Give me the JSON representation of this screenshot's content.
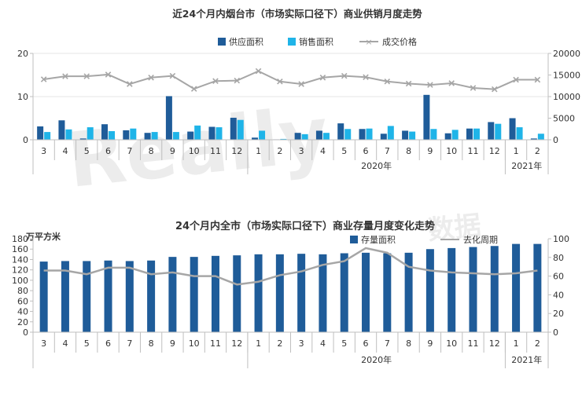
{
  "watermark": "Really",
  "watermark_cn": "数据",
  "chart_data": [
    {
      "type": "bar",
      "title": "近24个月内烟台市（市场实际口径下）商业供销月度走势",
      "categories": [
        "3",
        "4",
        "5",
        "6",
        "7",
        "8",
        "9",
        "10",
        "11",
        "12",
        "1",
        "2",
        "3",
        "4",
        "5",
        "6",
        "7",
        "8",
        "9",
        "10",
        "11",
        "12",
        "1",
        "2"
      ],
      "year_labels": [
        "2020年",
        "2021年"
      ],
      "series": [
        {
          "name": "供应面积",
          "type": "bar",
          "axis": "left",
          "color": "#1f5c99",
          "values": [
            3.1,
            4.5,
            0.3,
            3.6,
            2.2,
            1.6,
            10.1,
            1.9,
            3.0,
            5.1,
            0.5,
            0.1,
            1.6,
            2.1,
            3.8,
            2.5,
            1.4,
            2.1,
            10.4,
            1.5,
            2.6,
            4.1,
            5.0,
            0.3
          ]
        },
        {
          "name": "销售面积",
          "type": "bar",
          "axis": "left",
          "color": "#1fb4e8",
          "values": [
            1.8,
            2.4,
            2.9,
            2.0,
            2.6,
            1.8,
            1.8,
            3.3,
            2.9,
            4.6,
            2.1,
            0.2,
            1.3,
            1.6,
            2.5,
            2.6,
            3.2,
            1.9,
            2.5,
            2.3,
            2.6,
            3.7,
            2.9,
            1.4
          ]
        },
        {
          "name": "成交价格",
          "type": "line",
          "axis": "right",
          "color": "#a6a6a6",
          "values": [
            14000,
            14700,
            14700,
            15100,
            12900,
            14400,
            14800,
            11800,
            13600,
            13700,
            15900,
            13500,
            12900,
            14400,
            14800,
            14500,
            13500,
            13000,
            12700,
            13100,
            12000,
            11700,
            13900,
            13900
          ]
        }
      ],
      "ylim_left": [
        0,
        20
      ],
      "yticks_left": [
        0,
        10,
        20
      ],
      "ylim_right": [
        0,
        20000
      ],
      "yticks_right": [
        0,
        5000,
        10000,
        15000,
        20000
      ],
      "legend": "top-center"
    },
    {
      "type": "bar",
      "title": "24个月内全市（市场实际口径下）商业存量月度变化走势",
      "ylabel": "万平方米",
      "categories": [
        "3",
        "4",
        "5",
        "6",
        "7",
        "8",
        "9",
        "10",
        "11",
        "12",
        "1",
        "2",
        "3",
        "4",
        "5",
        "6",
        "7",
        "8",
        "9",
        "10",
        "11",
        "12",
        "1",
        "2"
      ],
      "year_labels": [
        "2020年",
        "2021年"
      ],
      "series": [
        {
          "name": "存量面积",
          "type": "bar",
          "axis": "left",
          "color": "#1f5c99",
          "values": [
            136,
            137,
            137,
            138,
            137,
            138,
            145,
            145,
            147,
            148,
            150,
            150,
            151,
            150,
            152,
            153,
            152,
            153,
            160,
            162,
            164,
            166,
            170,
            170
          ]
        },
        {
          "name": "去化周期",
          "type": "line",
          "axis": "right",
          "color": "#a6a6a6",
          "values": [
            66,
            66,
            62,
            69,
            69,
            62,
            64,
            60,
            60,
            51,
            54,
            61,
            65,
            72,
            76,
            90,
            85,
            70,
            66,
            64,
            63,
            62,
            63,
            66
          ]
        }
      ],
      "ylim_left": [
        0,
        180
      ],
      "yticks_left": [
        0,
        20,
        40,
        60,
        80,
        100,
        120,
        140,
        160,
        180
      ],
      "ylim_right": [
        0,
        100
      ],
      "yticks_right": [
        0,
        20,
        40,
        60,
        80,
        100
      ],
      "legend": "top-right"
    }
  ]
}
